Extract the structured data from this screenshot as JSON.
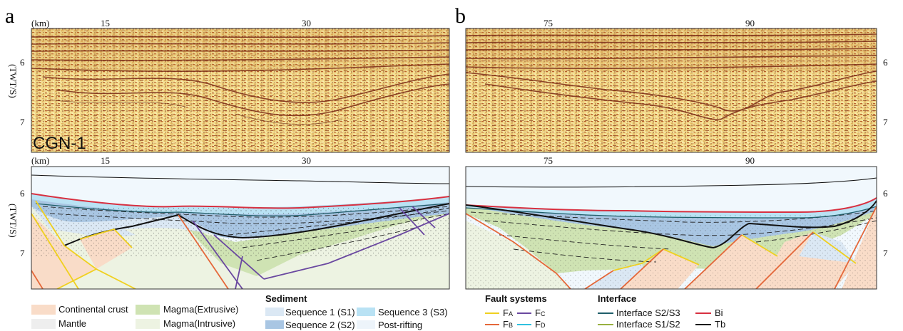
{
  "panels": [
    {
      "label": "a",
      "x_unit": "(km)",
      "x_ticks": [
        "15",
        "30"
      ],
      "y_label": "(TWT/S)",
      "y_ticks": [
        "6",
        "7"
      ],
      "profile_name": "CGN-1"
    },
    {
      "label": "b",
      "x_ticks": [
        "75",
        "90"
      ],
      "y_ticks": [
        "6",
        "7"
      ]
    }
  ],
  "lower_panel": {
    "x_unit": "(km)",
    "left_x_ticks": [
      "15",
      "30"
    ],
    "right_x_ticks": [
      "75",
      "90"
    ],
    "y_label": "(TWT/S)",
    "y_ticks": [
      "6",
      "7"
    ]
  },
  "legend": {
    "units": [
      {
        "label": "Continental crust",
        "color": "#f9dcc8"
      },
      {
        "label": "Mantle",
        "color": "#eeeeee"
      },
      {
        "label": "Magma(Extrusive)",
        "color": "#cfe3b3"
      },
      {
        "label": "Magma(Intrusive)",
        "color": "#edf3e2"
      }
    ],
    "sediment": {
      "title": "Sediment",
      "items": [
        {
          "label": "Sequence 1 (S1)",
          "color": "#dbe8f4"
        },
        {
          "label": "Sequence 2 (S2)",
          "color": "#a9c6e3"
        },
        {
          "label": "Sequence 3 (S3)",
          "color": "#b9e2f4"
        },
        {
          "label": "Post-rifting",
          "color": "#edf4fa"
        }
      ]
    },
    "faults": {
      "title": "Fault systems",
      "items": [
        {
          "main": "F",
          "sub": "A",
          "color": "#f0d020"
        },
        {
          "main": "F",
          "sub": "C",
          "color": "#6a48a0"
        },
        {
          "main": "F",
          "sub": "B",
          "color": "#e5683a"
        },
        {
          "main": "F",
          "sub": "D",
          "color": "#30c0e0"
        }
      ]
    },
    "interface": {
      "title": "Interface",
      "items": [
        {
          "label": "Interface S2/S3",
          "color": "#1f5e6a"
        },
        {
          "label": "Bi",
          "color": "#d83040"
        },
        {
          "label": "Interface S1/S2",
          "color": "#98b040"
        },
        {
          "label": "Tb",
          "color": "#111111"
        }
      ]
    }
  }
}
